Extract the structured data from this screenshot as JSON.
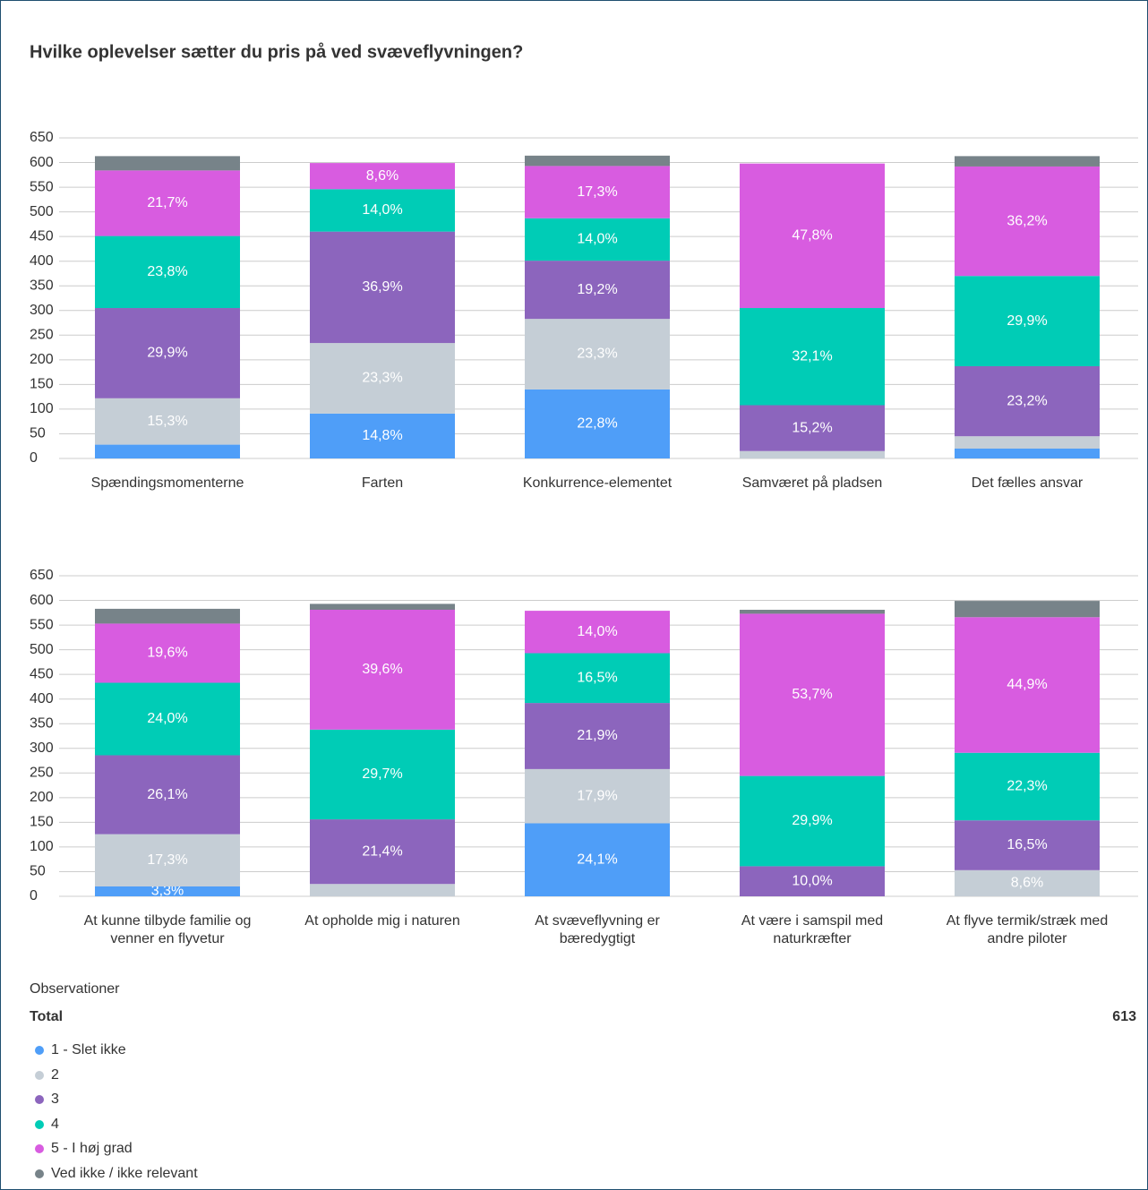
{
  "chart_data": [
    {
      "type": "bar",
      "stacked": true,
      "title": "Hvilke oplevelser sætter du pris på ved svæveflyvningen?",
      "categories": [
        "Spændingsmomenterne",
        "Farten",
        "Konkurrence-elementet",
        "Samværet på pladsen",
        "Det fælles ansvar"
      ],
      "ylim": [
        0,
        650
      ],
      "yticks": [
        0,
        50,
        100,
        150,
        200,
        250,
        300,
        350,
        400,
        450,
        500,
        550,
        600,
        650
      ],
      "grid": true,
      "series": [
        {
          "name": "1 - Slet ikke",
          "color": "#4f9ef8",
          "values": [
            28,
            91,
            140,
            0,
            20
          ],
          "value_labels": [
            null,
            "14,8%",
            "22,8%",
            null,
            null
          ]
        },
        {
          "name": "2",
          "color": "#c5ced6",
          "values": [
            94,
            143,
            143,
            15,
            25
          ],
          "value_labels": [
            "15,3%",
            "23,3%",
            "23,3%",
            null,
            null
          ]
        },
        {
          "name": "3",
          "color": "#8c65bd",
          "values": [
            183,
            226,
            118,
            93,
            142
          ],
          "value_labels": [
            "29,9%",
            "36,9%",
            "19,2%",
            "15,2%",
            "23,2%"
          ]
        },
        {
          "name": "4",
          "color": "#00ccb6",
          "values": [
            146,
            86,
            86,
            197,
            183
          ],
          "value_labels": [
            "23,8%",
            "14,0%",
            "14,0%",
            "32,1%",
            "29,9%"
          ]
        },
        {
          "name": "5 - I høj grad",
          "color": "#d85ce0",
          "values": [
            133,
            53,
            106,
            293,
            222
          ],
          "value_labels": [
            "21,7%",
            "8,6%",
            "17,3%",
            "47,8%",
            "36,2%"
          ]
        },
        {
          "name": "Ved ikke / ikke relevant",
          "color": "#778389",
          "values": [
            29,
            0,
            21,
            0,
            21
          ],
          "value_labels": [
            null,
            null,
            null,
            null,
            null
          ]
        }
      ]
    },
    {
      "type": "bar",
      "stacked": true,
      "categories": [
        "At kunne tilbyde familie og venner en flyvetur",
        "At opholde mig i naturen",
        "At svæveflyvning er bæredygtigt",
        "At være i samspil med naturkræfter",
        "At flyve termik/stræk med andre piloter"
      ],
      "ylim": [
        0,
        650
      ],
      "yticks": [
        0,
        50,
        100,
        150,
        200,
        250,
        300,
        350,
        400,
        450,
        500,
        550,
        600,
        650
      ],
      "grid": true,
      "series": [
        {
          "name": "1 - Slet ikke",
          "color": "#4f9ef8",
          "values": [
            20,
            0,
            148,
            0,
            0
          ],
          "value_labels": [
            "3,3%",
            null,
            "24,1%",
            null,
            null
          ]
        },
        {
          "name": "2",
          "color": "#c5ced6",
          "values": [
            106,
            25,
            110,
            0,
            53
          ],
          "value_labels": [
            "17,3%",
            null,
            "17,9%",
            null,
            "8,6%"
          ]
        },
        {
          "name": "3",
          "color": "#8c65bd",
          "values": [
            160,
            131,
            134,
            61,
            101
          ],
          "value_labels": [
            "26,1%",
            "21,4%",
            "21,9%",
            "10,0%",
            "16,5%"
          ]
        },
        {
          "name": "4",
          "color": "#00ccb6",
          "values": [
            147,
            182,
            101,
            183,
            137
          ],
          "value_labels": [
            "24,0%",
            "29,7%",
            "16,5%",
            "29,9%",
            "22,3%"
          ]
        },
        {
          "name": "5 - I høj grad",
          "color": "#d85ce0",
          "values": [
            120,
            243,
            86,
            329,
            275
          ],
          "value_labels": [
            "19,6%",
            "39,6%",
            "14,0%",
            "53,7%",
            "44,9%"
          ]
        },
        {
          "name": "Ved ikke / ikke relevant",
          "color": "#778389",
          "values": [
            30,
            12,
            0,
            8,
            33
          ],
          "value_labels": [
            null,
            null,
            null,
            null,
            null
          ]
        }
      ]
    }
  ],
  "observations": {
    "title": "Observationer",
    "label": "Total",
    "value": 613
  }
}
